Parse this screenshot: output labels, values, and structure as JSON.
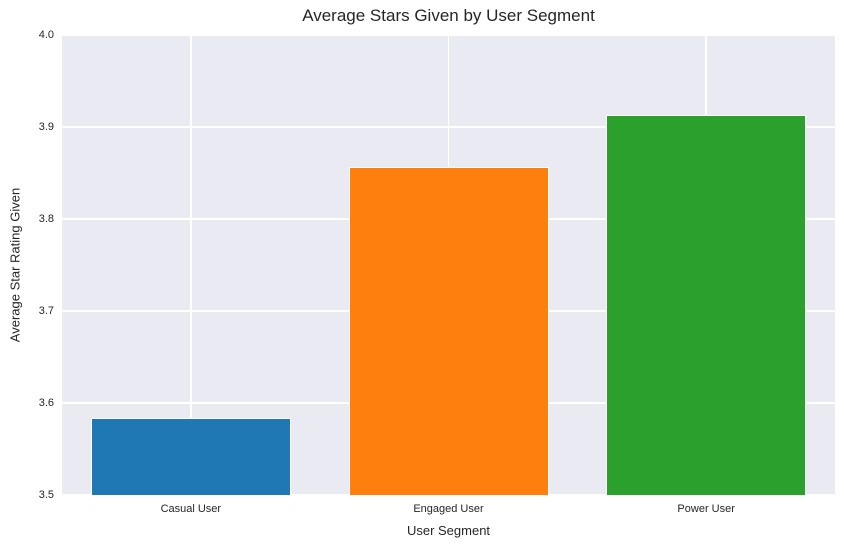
{
  "chart_data": {
    "type": "bar",
    "title": "Average Stars Given by User Segment",
    "categories": [
      "Casual User",
      "Engaged User",
      "Power User"
    ],
    "values": [
      3.584,
      3.857,
      3.913
    ],
    "xlabel": "User Segment",
    "ylabel": "Average Star Rating Given",
    "ylim": [
      3.5,
      4.0
    ],
    "yticks": [
      3.5,
      3.6,
      3.7,
      3.8,
      3.9,
      4.0
    ],
    "bar_colors": [
      "#1f77b4",
      "#ff7f0e",
      "#2ca02c"
    ],
    "plot_background": "#eaeaf2",
    "grid_color": "#ffffff",
    "text_color": "#262626",
    "grid": true,
    "legend": false
  }
}
